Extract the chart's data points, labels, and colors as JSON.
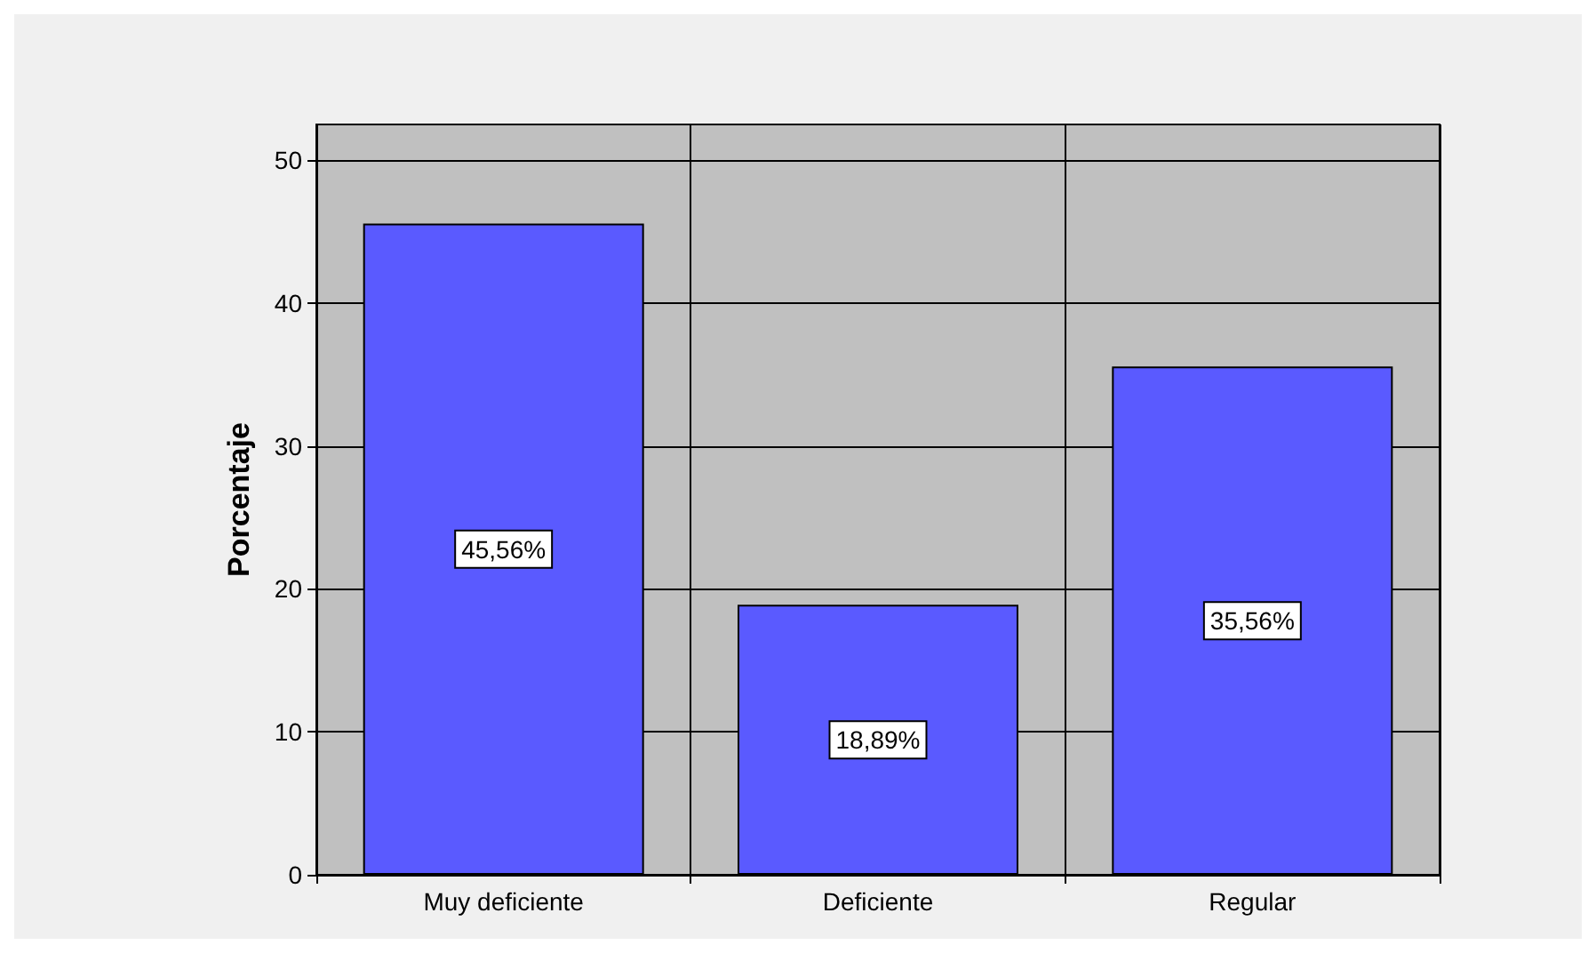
{
  "chart_data": {
    "type": "bar",
    "ylabel": "Porcentaje",
    "categories": [
      "Muy deficiente",
      "Deficiente",
      "Regular"
    ],
    "values": [
      45.56,
      18.89,
      35.56
    ],
    "value_labels": [
      "45,56%",
      "18,89%",
      "35,56%"
    ],
    "color": "#5a5aff",
    "ylim": [
      0,
      52.5
    ],
    "yticks": [
      0,
      10,
      20,
      30,
      40,
      50
    ],
    "grid": true
  }
}
